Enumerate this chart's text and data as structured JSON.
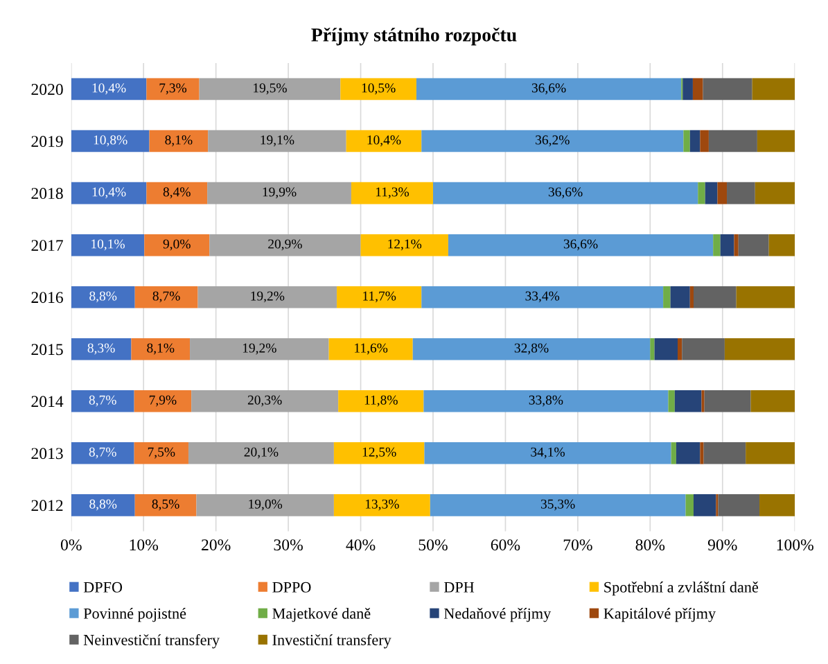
{
  "chart_data": {
    "type": "bar",
    "orientation": "horizontal",
    "stacked": true,
    "title": "Příjmy státního rozpočtu",
    "categories": [
      "2020",
      "2019",
      "2018",
      "2017",
      "2016",
      "2015",
      "2014",
      "2013",
      "2012"
    ],
    "xlim": [
      0,
      100
    ],
    "xticks": [
      {
        "value": 0,
        "label": "0%"
      },
      {
        "value": 10,
        "label": "10%"
      },
      {
        "value": 20,
        "label": "20%"
      },
      {
        "value": 30,
        "label": "30%"
      },
      {
        "value": 40,
        "label": "40%"
      },
      {
        "value": 50,
        "label": "50%"
      },
      {
        "value": 60,
        "label": "60%"
      },
      {
        "value": 70,
        "label": "70%"
      },
      {
        "value": 80,
        "label": "80%"
      },
      {
        "value": 90,
        "label": "90%"
      },
      {
        "value": 100,
        "label": "100%"
      }
    ],
    "grid": "x",
    "legend": "bottom",
    "series": [
      {
        "name": "DPFO",
        "color": "#4472c4",
        "values": [
          10.4,
          10.8,
          10.4,
          10.1,
          8.8,
          8.3,
          8.7,
          8.7,
          8.8
        ],
        "value_labels": [
          "10,4%",
          "10,8%",
          "10,4%",
          "10,1%",
          "8,8%",
          "8,3%",
          "8,7%",
          "8,7%",
          "8,8%"
        ]
      },
      {
        "name": "DPPO",
        "color": "#ed7d31",
        "values": [
          7.3,
          8.1,
          8.4,
          9.0,
          8.7,
          8.1,
          7.9,
          7.5,
          8.5
        ],
        "value_labels": [
          "7,3%",
          "8,1%",
          "8,4%",
          "9,0%",
          "8,7%",
          "8,1%",
          "7,9%",
          "7,5%",
          "8,5%"
        ]
      },
      {
        "name": "DPH",
        "color": "#a5a5a5",
        "values": [
          19.5,
          19.1,
          19.9,
          20.9,
          19.2,
          19.2,
          20.3,
          20.1,
          19.0
        ],
        "value_labels": [
          "19,5%",
          "19,1%",
          "19,9%",
          "20,9%",
          "19,2%",
          "19,2%",
          "20,3%",
          "20,1%",
          "19,0%"
        ]
      },
      {
        "name": "Spotřební a zvláštní daně",
        "color": "#ffc000",
        "values": [
          10.5,
          10.4,
          11.3,
          12.1,
          11.7,
          11.6,
          11.8,
          12.5,
          13.3
        ],
        "value_labels": [
          "10,5%",
          "10,4%",
          "11,3%",
          "12,1%",
          "11,7%",
          "11,6%",
          "11,8%",
          "12,5%",
          "13,3%"
        ]
      },
      {
        "name": "Povinné pojistné",
        "color": "#5b9bd5",
        "values": [
          36.6,
          36.2,
          36.6,
          36.6,
          33.4,
          32.8,
          33.8,
          34.1,
          35.3
        ],
        "value_labels": [
          "36,6%",
          "36,2%",
          "36,6%",
          "36,6%",
          "33,4%",
          "32,8%",
          "33,8%",
          "34,1%",
          "35,3%"
        ]
      },
      {
        "name": "Majetkové daně",
        "color": "#70ad47",
        "values": [
          0.2,
          0.9,
          1.0,
          1.0,
          1.0,
          0.6,
          0.9,
          0.7,
          1.1
        ]
      },
      {
        "name": "Nedaňové příjmy",
        "color": "#264478",
        "values": [
          1.4,
          1.4,
          1.7,
          1.9,
          2.7,
          3.2,
          3.7,
          3.3,
          3.1
        ]
      },
      {
        "name": "Kapitálové příjmy",
        "color": "#9e480e",
        "values": [
          1.4,
          1.2,
          1.3,
          0.6,
          0.5,
          0.6,
          0.4,
          0.5,
          0.3
        ]
      },
      {
        "name": "Neinvestiční transfery",
        "color": "#636363",
        "values": [
          6.8,
          6.7,
          3.9,
          4.2,
          5.9,
          5.9,
          6.4,
          5.8,
          5.7
        ]
      },
      {
        "name": "Investiční transfery",
        "color": "#997300",
        "values": [
          5.9,
          5.2,
          5.5,
          3.6,
          8.1,
          9.7,
          6.1,
          6.8,
          4.9
        ]
      }
    ]
  }
}
